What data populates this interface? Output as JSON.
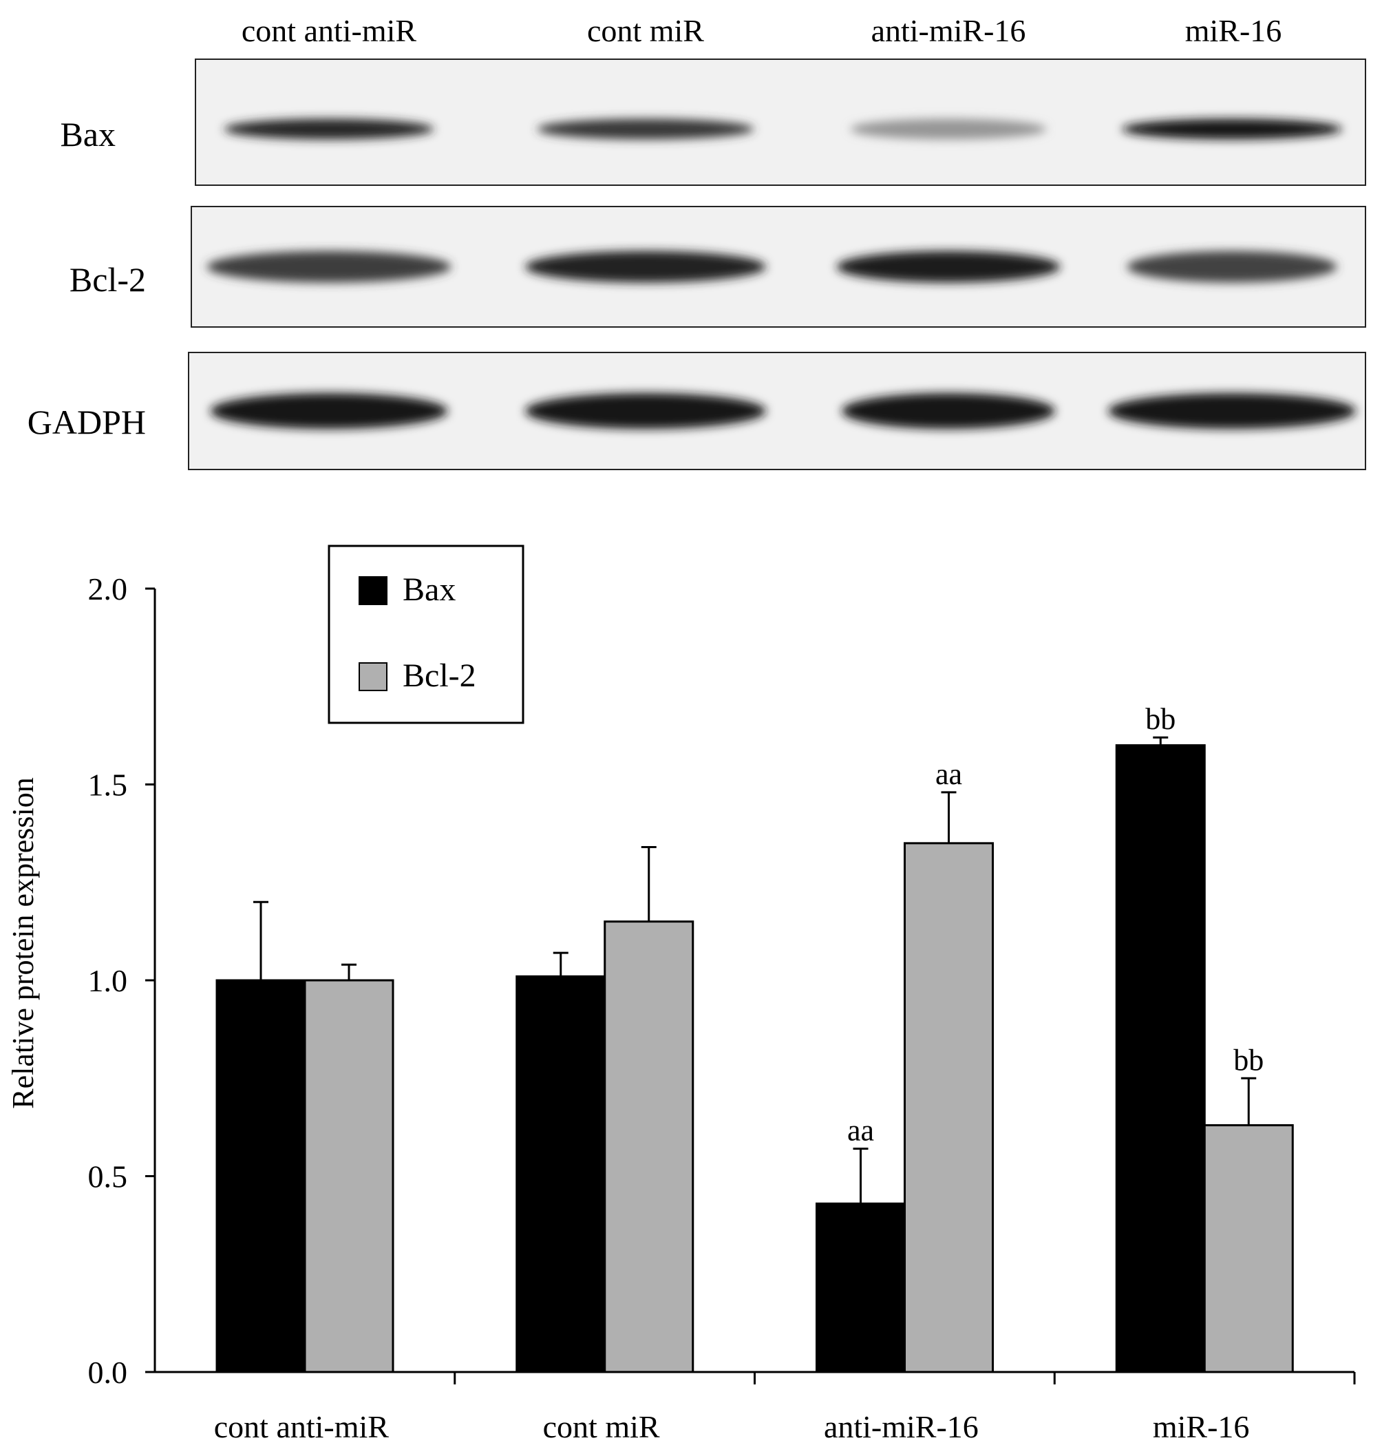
{
  "blot": {
    "lane_labels": [
      "cont anti-miR",
      "cont miR",
      "anti-miR-16",
      "miR-16"
    ],
    "rows": [
      {
        "label": "Bax",
        "intensity": [
          0.88,
          0.8,
          0.38,
          0.95
        ]
      },
      {
        "label": "Bcl-2",
        "intensity": [
          0.78,
          0.9,
          0.93,
          0.75
        ]
      },
      {
        "label": "GADPH",
        "intensity": [
          0.96,
          0.96,
          0.94,
          0.95
        ]
      }
    ]
  },
  "chart_data": {
    "type": "bar",
    "categories": [
      "cont anti-miR",
      "cont miR",
      "anti-miR-16",
      "miR-16"
    ],
    "series": [
      {
        "name": "Bax",
        "color": "#000000",
        "values": [
          1.0,
          1.01,
          0.43,
          1.6
        ],
        "errors": [
          0.2,
          0.06,
          0.14,
          0.02
        ],
        "annotations": [
          "",
          "",
          "aa",
          "bb"
        ]
      },
      {
        "name": "Bcl-2",
        "color": "#b0b0b0",
        "values": [
          1.0,
          1.15,
          1.35,
          0.63
        ],
        "errors": [
          0.04,
          0.19,
          0.13,
          0.12
        ],
        "annotations": [
          "",
          "",
          "aa",
          "bb"
        ]
      }
    ],
    "ylabel": "Relative protein expression",
    "xlabel": "",
    "ylim": [
      0,
      2.0
    ],
    "yticks": [
      "0.0",
      "0.5",
      "1.0",
      "1.5",
      "2.0"
    ],
    "legend_position": "top-left",
    "grid": false
  }
}
